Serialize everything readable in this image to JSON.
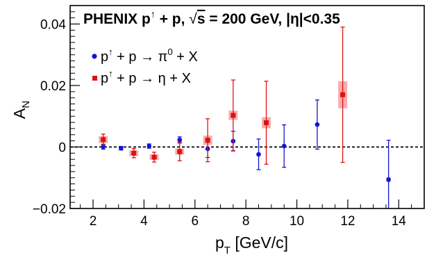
{
  "chart_data": {
    "type": "scatter",
    "title": {
      "main": "PHENIX p",
      "beam_mark": "↑",
      "rest": " + p,  ",
      "sqrt_sym": "√",
      "sqrt_arg": "s",
      "energy": " = 200 GeV, ",
      "eta_part": "|η|<0.35"
    },
    "xlabel": {
      "main": "p",
      "sub": "T",
      "unit": " [GeV/c]"
    },
    "ylabel": {
      "main": "A",
      "sub": "N"
    },
    "xlim": [
      1.1,
      15
    ],
    "ylim": [
      -0.02,
      0.046
    ],
    "x_ticks": [
      2,
      4,
      6,
      8,
      10,
      12,
      14
    ],
    "x_tick_labels": [
      "2",
      "4",
      "6",
      "8",
      "10",
      "12",
      "14"
    ],
    "y_ticks": [
      -0.02,
      0,
      0.02,
      0.04
    ],
    "y_tick_labels": [
      "−0.02",
      "0",
      "0.02",
      "0.04"
    ],
    "zero_line": true,
    "series": [
      {
        "label_parts": {
          "a": "p",
          "up": "↑",
          "b": " + p → π",
          "sup": "0",
          "c": " + X"
        },
        "color": "#1414d2",
        "marker": "circle",
        "points": [
          {
            "x": 2.4,
            "y": 0.0001,
            "err": 0.0008,
            "sys": 0.0003
          },
          {
            "x": 3.1,
            "y": -0.0004,
            "err": 0.0006,
            "sys": 0.0002
          },
          {
            "x": 4.2,
            "y": 0.0003,
            "err": 0.0007,
            "sys": 0.0003
          },
          {
            "x": 5.4,
            "y": 0.0023,
            "err": 0.001,
            "sys": 0.0006
          },
          {
            "x": 6.5,
            "y": -0.0006,
            "err": 0.0028,
            "sys": 0.0005
          },
          {
            "x": 7.5,
            "y": 0.0019,
            "err": 0.0032,
            "sys": 0.0005
          },
          {
            "x": 8.5,
            "y": -0.0024,
            "err": 0.005,
            "sys": 0.0005
          },
          {
            "x": 9.5,
            "y": 0.0003,
            "err": 0.0069,
            "sys": 0.0005
          },
          {
            "x": 10.8,
            "y": 0.0073,
            "err": 0.008,
            "sys": 0.0005
          },
          {
            "x": 13.6,
            "y": -0.0106,
            "err": 0.0128,
            "sys": 0.0008
          }
        ]
      },
      {
        "label_parts": {
          "a": "p",
          "up": "↑",
          "b": " + p → η",
          "sup": "",
          "c": "  + X"
        },
        "color": "#e01010",
        "band_color": "#f2a0a0",
        "marker": "square",
        "points": [
          {
            "x": 2.4,
            "y": 0.0024,
            "err": 0.0018,
            "sys": 0.0011
          },
          {
            "x": 3.6,
            "y": -0.002,
            "err": 0.0015,
            "sys": 0.0009
          },
          {
            "x": 4.4,
            "y": -0.0033,
            "err": 0.0016,
            "sys": 0.0009
          },
          {
            "x": 5.4,
            "y": -0.0015,
            "err": 0.003,
            "sys": 0.001
          },
          {
            "x": 6.5,
            "y": 0.0022,
            "err": 0.007,
            "sys": 0.0015
          },
          {
            "x": 7.5,
            "y": 0.0103,
            "err": 0.0115,
            "sys": 0.0015
          },
          {
            "x": 8.8,
            "y": 0.0079,
            "err": 0.0135,
            "sys": 0.0018
          },
          {
            "x": 11.8,
            "y": 0.017,
            "err": 0.022,
            "sys": 0.0044
          }
        ]
      }
    ]
  }
}
